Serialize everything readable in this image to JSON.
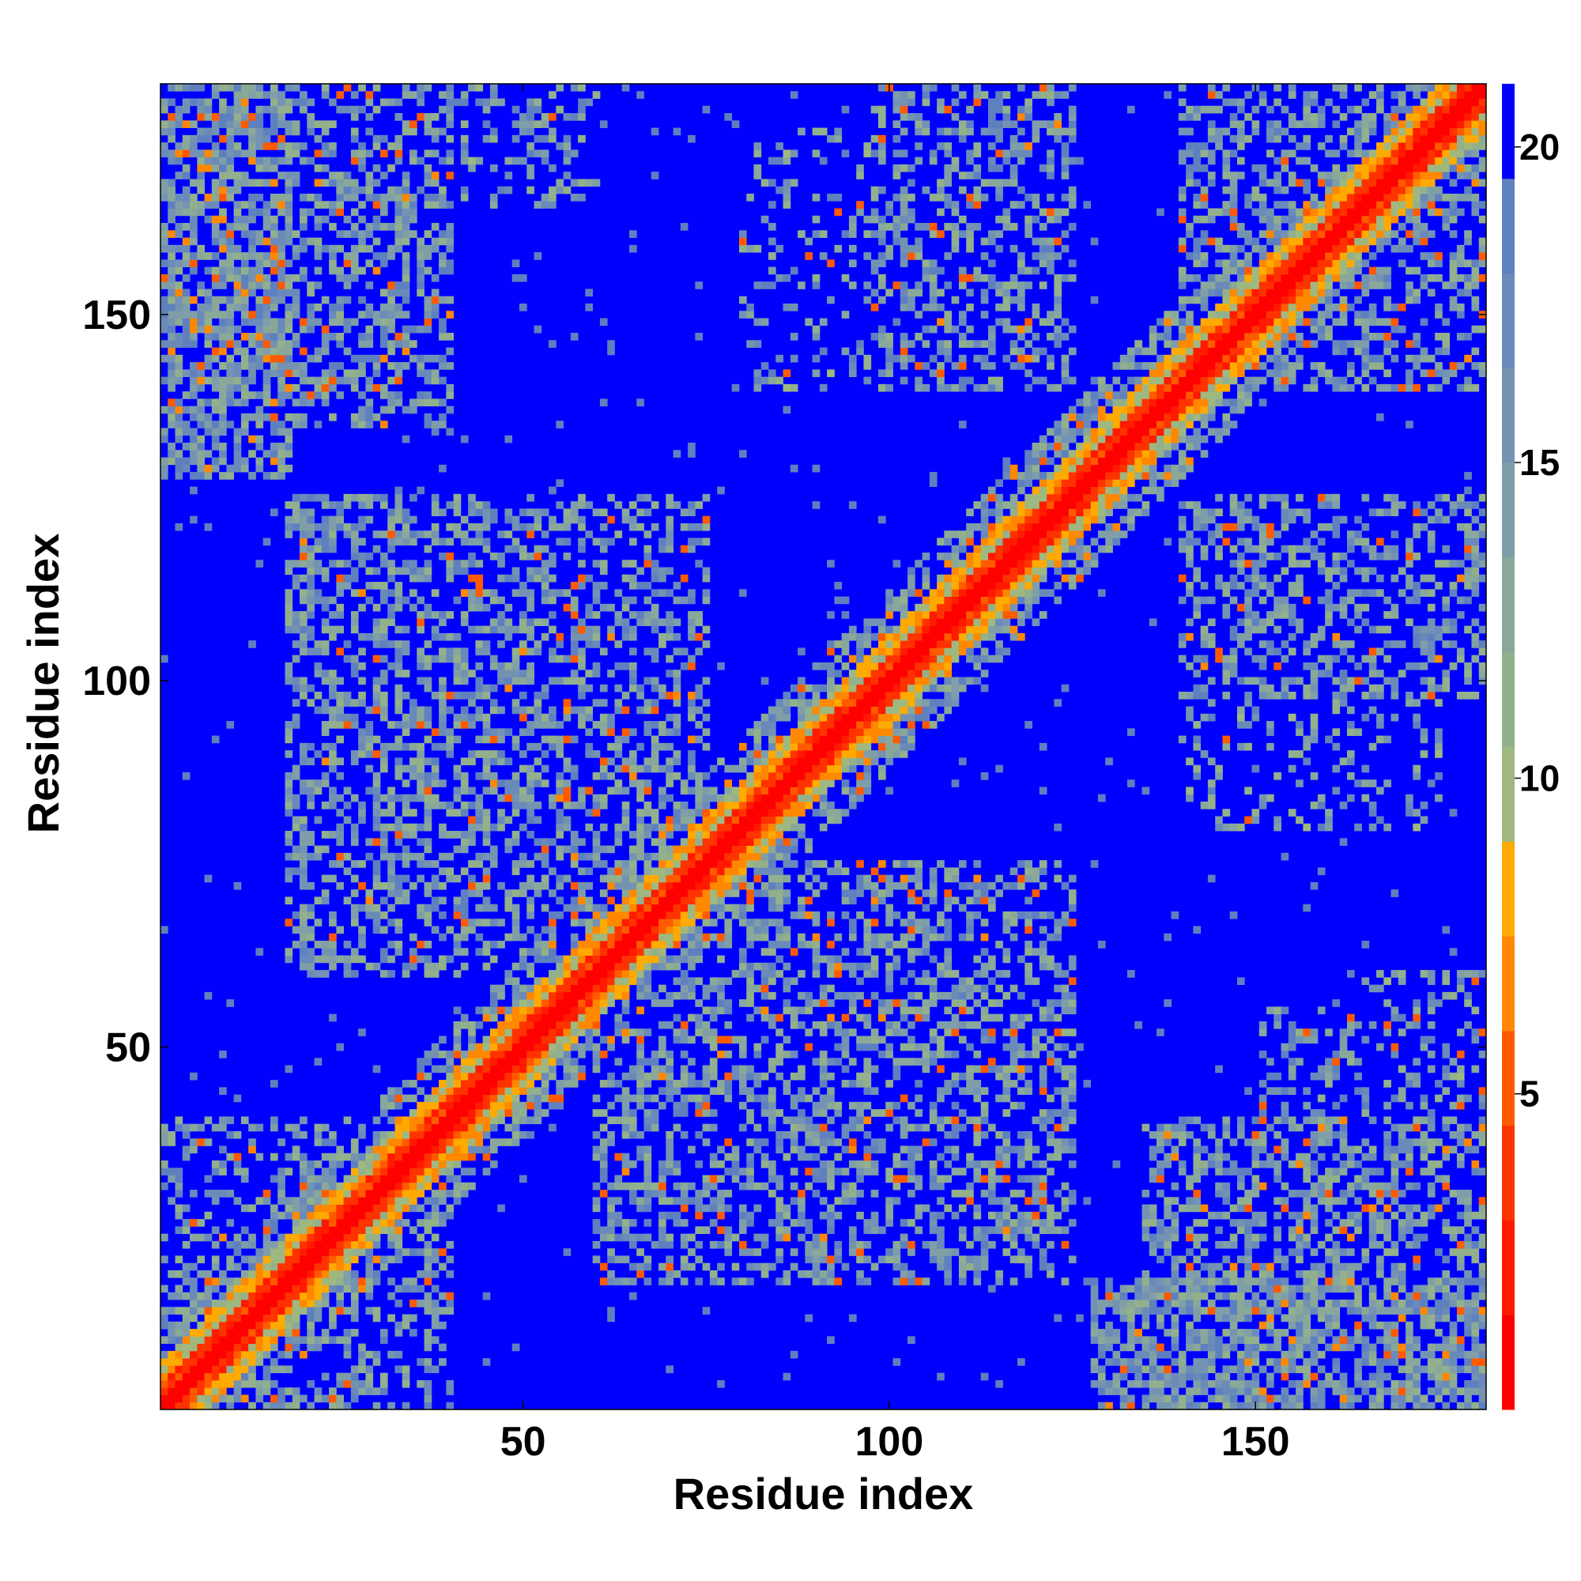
{
  "chart_data": {
    "type": "heatmap",
    "title": "",
    "xlabel": "Residue index",
    "ylabel": "Residue index",
    "n_residues": 181,
    "xlim": [
      1,
      181
    ],
    "ylim": [
      1,
      181
    ],
    "x_ticks": [
      50,
      100,
      150
    ],
    "y_ticks": [
      50,
      100,
      150
    ],
    "colorbar": {
      "range": [
        0,
        21
      ],
      "ticks": [
        5,
        10,
        15,
        20
      ],
      "levels": [
        {
          "from": 0,
          "to": 1.5,
          "color": "#ff0000"
        },
        {
          "from": 1.5,
          "to": 3,
          "color": "#ff1a00"
        },
        {
          "from": 3,
          "to": 4.5,
          "color": "#ff3300"
        },
        {
          "from": 4.5,
          "to": 6,
          "color": "#ff5a00"
        },
        {
          "from": 6,
          "to": 7.5,
          "color": "#ff8800"
        },
        {
          "from": 7.5,
          "to": 9,
          "color": "#ffaa00"
        },
        {
          "from": 9,
          "to": 10.5,
          "color": "#9fb87f"
        },
        {
          "from": 10.5,
          "to": 12,
          "color": "#93b08d"
        },
        {
          "from": 12,
          "to": 13.5,
          "color": "#8aa89a"
        },
        {
          "from": 13.5,
          "to": 15,
          "color": "#7f9ea8"
        },
        {
          "from": 15,
          "to": 16.5,
          "color": "#7493b2"
        },
        {
          "from": 16.5,
          "to": 18,
          "color": "#6a8ab9"
        },
        {
          "from": 18,
          "to": 19.5,
          "color": "#5f80bf"
        },
        {
          "from": 19.5,
          "to": 21,
          "color": "#0000ff"
        }
      ]
    },
    "diagonal_value": 0,
    "background_value": 21,
    "contact_regions": [
      {
        "x": [
          1,
          182
        ],
        "y": [
          1,
          182
        ],
        "shape": "diagonal",
        "width": 10,
        "strength": 1.0
      },
      {
        "x": [
          128,
          140
        ],
        "y": [
          128,
          140
        ],
        "shape": "anti-diagonal",
        "width": 3,
        "strength": 0.9
      },
      {
        "x": [
          72,
          82
        ],
        "y": [
          72,
          82
        ],
        "shape": "anti-diagonal",
        "width": 3,
        "strength": 0.8
      },
      {
        "x": [
          92,
          104
        ],
        "y": [
          92,
          104
        ],
        "shape": "anti-diagonal",
        "width": 3,
        "strength": 0.7
      },
      {
        "x": [
          84,
          92
        ],
        "y": [
          84,
          92
        ],
        "shape": "anti-diagonal",
        "width": 3,
        "strength": 0.7
      },
      {
        "x": [
          1,
          18
        ],
        "y": [
          128,
          182
        ],
        "shape": "block",
        "strength": 0.8
      },
      {
        "x": [
          15,
          40
        ],
        "y": [
          135,
          182
        ],
        "shape": "block",
        "strength": 0.6
      },
      {
        "x": [
          128,
          182
        ],
        "y": [
          1,
          18
        ],
        "shape": "block",
        "strength": 0.8
      },
      {
        "x": [
          135,
          182
        ],
        "y": [
          15,
          40
        ],
        "shape": "block",
        "strength": 0.6
      },
      {
        "x": [
          18,
          75
        ],
        "y": [
          60,
          125
        ],
        "shape": "block",
        "strength": 0.55
      },
      {
        "x": [
          60,
          125
        ],
        "y": [
          18,
          75
        ],
        "shape": "block",
        "strength": 0.55
      },
      {
        "x": [
          98,
          125
        ],
        "y": [
          140,
          182
        ],
        "shape": "block",
        "strength": 0.5
      },
      {
        "x": [
          140,
          182
        ],
        "y": [
          98,
          125
        ],
        "shape": "block",
        "strength": 0.5
      },
      {
        "x": [
          140,
          182
        ],
        "y": [
          140,
          182
        ],
        "shape": "block",
        "strength": 0.55
      },
      {
        "x": [
          1,
          40
        ],
        "y": [
          1,
          40
        ],
        "shape": "block",
        "strength": 0.45
      },
      {
        "x": [
          35,
          55
        ],
        "y": [
          85,
          120
        ],
        "shape": "block",
        "strength": 0.5
      },
      {
        "x": [
          85,
          120
        ],
        "y": [
          35,
          55
        ],
        "shape": "block",
        "strength": 0.5
      },
      {
        "x": [
          42,
          60
        ],
        "y": [
          165,
          182
        ],
        "shape": "block",
        "strength": 0.35
      },
      {
        "x": [
          165,
          182
        ],
        "y": [
          42,
          60
        ],
        "shape": "block",
        "strength": 0.35
      },
      {
        "x": [
          80,
          100
        ],
        "y": [
          140,
          175
        ],
        "shape": "block",
        "strength": 0.25
      },
      {
        "x": [
          140,
          175
        ],
        "y": [
          80,
          100
        ],
        "shape": "block",
        "strength": 0.25
      },
      {
        "x": [
          150,
          175
        ],
        "y": [
          40,
          55
        ],
        "shape": "block",
        "strength": 0.35
      }
    ]
  }
}
